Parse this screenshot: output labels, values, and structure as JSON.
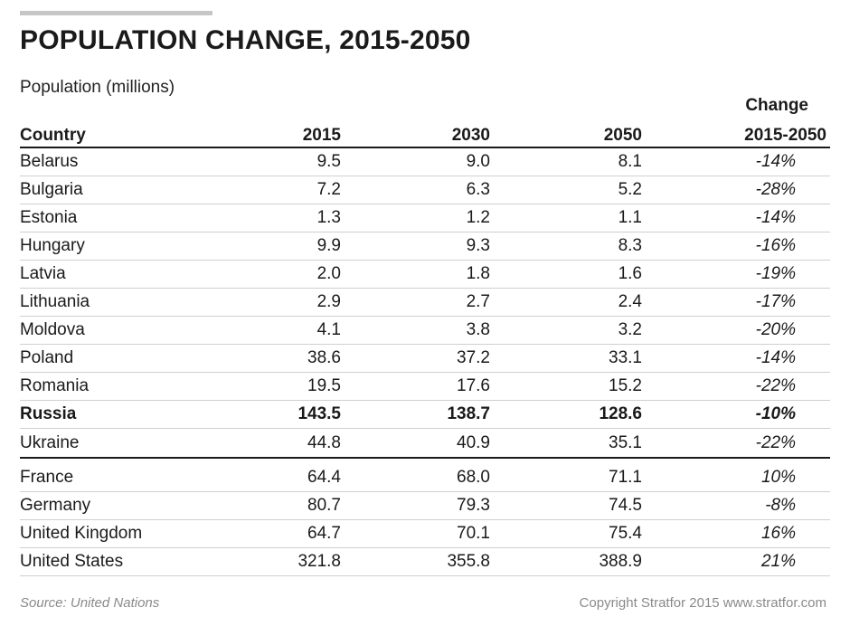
{
  "chart_data": {
    "type": "table",
    "title": "POPULATION CHANGE, 2015-2050",
    "subtitle": "Population (millions)",
    "change_header_line1": "Change",
    "columns": [
      "Country",
      "2015",
      "2030",
      "2050",
      "2015-2050"
    ],
    "rows": [
      {
        "country": "Belarus",
        "y2015": "9.5",
        "y2030": "9.0",
        "y2050": "8.1",
        "change": "-14%"
      },
      {
        "country": "Bulgaria",
        "y2015": "7.2",
        "y2030": "6.3",
        "y2050": "5.2",
        "change": "-28%"
      },
      {
        "country": "Estonia",
        "y2015": "1.3",
        "y2030": "1.2",
        "y2050": "1.1",
        "change": "-14%"
      },
      {
        "country": "Hungary",
        "y2015": "9.9",
        "y2030": "9.3",
        "y2050": "8.3",
        "change": "-16%"
      },
      {
        "country": "Latvia",
        "y2015": "2.0",
        "y2030": "1.8",
        "y2050": "1.6",
        "change": "-19%"
      },
      {
        "country": "Lithuania",
        "y2015": "2.9",
        "y2030": "2.7",
        "y2050": "2.4",
        "change": "-17%"
      },
      {
        "country": "Moldova",
        "y2015": "4.1",
        "y2030": "3.8",
        "y2050": "3.2",
        "change": "-20%"
      },
      {
        "country": "Poland",
        "y2015": "38.6",
        "y2030": "37.2",
        "y2050": "33.1",
        "change": "-14%"
      },
      {
        "country": "Romania",
        "y2015": "19.5",
        "y2030": "17.6",
        "y2050": "15.2",
        "change": "-22%"
      },
      {
        "country": "Russia",
        "y2015": "143.5",
        "y2030": "138.7",
        "y2050": "128.6",
        "change": "-10%"
      },
      {
        "country": "Ukraine",
        "y2015": "44.8",
        "y2030": "40.9",
        "y2050": "35.1",
        "change": "-22%"
      },
      {
        "country": "France",
        "y2015": "64.4",
        "y2030": "68.0",
        "y2050": "71.1",
        "change": "10%"
      },
      {
        "country": "Germany",
        "y2015": "80.7",
        "y2030": "79.3",
        "y2050": "74.5",
        "change": "-8%"
      },
      {
        "country": "United Kingdom",
        "y2015": "64.7",
        "y2030": "70.1",
        "y2050": "75.4",
        "change": "16%"
      },
      {
        "country": "United States",
        "y2015": "321.8",
        "y2030": "355.8",
        "y2050": "388.9",
        "change": "21%"
      }
    ],
    "highlighted_row": "Russia",
    "group_break_after": "Ukraine"
  },
  "footer": {
    "source": "Source: United Nations",
    "copyright": "Copyright Stratfor 2015   www.stratfor.com"
  },
  "colors": {
    "text": "#1a1a1a",
    "rule": "#1a1a1a",
    "row_divider": "#cfcfcf",
    "footer": "#8a8a8a",
    "top_bar": "#c6c6c6"
  }
}
